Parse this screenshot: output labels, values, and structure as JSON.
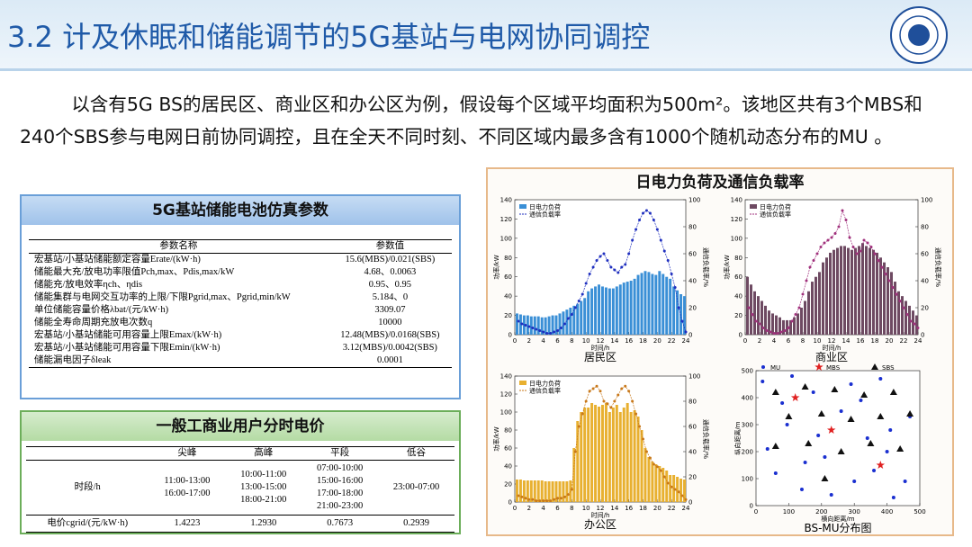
{
  "header": {
    "title": "3.2 计及休眠和储能调节的5G基站与电网协同调控"
  },
  "intro": "以含有5G BS的居民区、商业区和办公区为例，假设每个区域平均面积为500m²。该地区共有3个MBS和240个SBS参与电网日前协同调控，且在全天不同时刻、不同区域内最多含有1000个随机动态分布的MU 。",
  "battery_table": {
    "title": "5G基站储能电池仿真参数",
    "headers": [
      "参数名称",
      "参数值"
    ],
    "rows": [
      [
        "宏基站/小基站储能额定容量Erate/(kW·h)",
        "15.6(MBS)/0.021(SBS)"
      ],
      [
        "储能最大充/放电功率限值Pch,max、Pdis,max/kW",
        "4.68、0.0063"
      ],
      [
        "储能充/放电效率ηch、ηdis",
        "0.95、0.95"
      ],
      [
        "储能集群与电网交互功率的上限/下限Pgrid,max、Pgrid,min/kW",
        "5.184、0"
      ],
      [
        "单位储能容量价格λbat/(元/kW·h)",
        "3309.07"
      ],
      [
        "储能全寿命周期充放电次数q",
        "10000"
      ],
      [
        "宏基站/小基站储能可用容量上限Emax/(kW·h)",
        "12.48(MBS)/0.0168(SBS)"
      ],
      [
        "宏基站/小基站储能可用容量下限Emin/(kW·h)",
        "3.12(MBS)/0.0042(SBS)"
      ],
      [
        "储能漏电因子δleak",
        "0.0001"
      ]
    ]
  },
  "price_table": {
    "title": "一般工商业用户分时电价",
    "headers": [
      "尖峰",
      "高峰",
      "平段",
      "低谷"
    ],
    "rows": [
      [
        [
          "时段/h"
        ],
        [
          "11:00-13:00",
          "16:00-17:00"
        ],
        [
          "10:00-11:00",
          "13:00-15:00",
          "18:00-21:00"
        ],
        [
          "07:00-10:00",
          "15:00-16:00",
          "17:00-18:00",
          "21:00-23:00"
        ],
        [
          "23:00-07:00"
        ]
      ],
      [
        [
          "电价cgrid/(元/kW·h)"
        ],
        [
          "1.4223"
        ],
        [
          "1.2930"
        ],
        [
          "0.7673"
        ],
        [
          "0.2939"
        ]
      ]
    ]
  },
  "panel_title": "日电力负荷及通信负载率",
  "chart_data": [
    {
      "type": "barline",
      "caption": "居民区",
      "xlabel": "时间/h",
      "ylabel": "功率/kW",
      "y2label": "通信负载率/%",
      "xlim": [
        0,
        24
      ],
      "ylim": [
        0,
        140
      ],
      "y2lim": [
        0,
        100
      ],
      "xticks": [
        0,
        2,
        4,
        6,
        8,
        10,
        12,
        14,
        16,
        18,
        20,
        22,
        24
      ],
      "yticks": [
        0,
        20,
        40,
        60,
        80,
        100,
        120,
        140
      ],
      "y2ticks": [
        0,
        20,
        40,
        60,
        80,
        100
      ],
      "x": [
        0.5,
        1,
        1.5,
        2,
        2.5,
        3,
        3.5,
        4,
        4.5,
        5,
        5.5,
        6,
        6.5,
        7,
        7.5,
        8,
        8.5,
        9,
        9.5,
        10,
        10.5,
        11,
        11.5,
        12,
        12.5,
        13,
        13.5,
        14,
        14.5,
        15,
        15.5,
        16,
        16.5,
        17,
        17.5,
        18,
        18.5,
        19,
        19.5,
        20,
        20.5,
        21,
        21.5,
        22,
        22.5,
        23,
        23.5,
        24
      ],
      "series": [
        {
          "name": "日电力负荷",
          "color": "#3a8fd6",
          "values": [
            22,
            21,
            20,
            20,
            19,
            19,
            19,
            18,
            18,
            19,
            20,
            20,
            22,
            24,
            26,
            28,
            30,
            32,
            35,
            38,
            45,
            48,
            50,
            52,
            50,
            49,
            48,
            48,
            50,
            52,
            54,
            55,
            56,
            58,
            62,
            64,
            66,
            65,
            63,
            62,
            66,
            63,
            60,
            58,
            50,
            46,
            42,
            40
          ]
        },
        {
          "name": "通信负载率",
          "color": "#1f2fbf",
          "axis": "y2",
          "values": [
            10,
            8,
            7,
            6,
            5,
            4,
            3,
            2,
            1,
            1,
            2,
            3,
            5,
            8,
            12,
            15,
            20,
            25,
            30,
            38,
            45,
            50,
            55,
            58,
            60,
            55,
            50,
            48,
            46,
            50,
            52,
            60,
            70,
            78,
            85,
            90,
            92,
            90,
            85,
            78,
            70,
            62,
            55,
            45,
            35,
            20,
            10,
            2
          ]
        }
      ]
    },
    {
      "type": "barline",
      "caption": "商业区",
      "xlabel": "时间/h",
      "ylabel": "功率/kW",
      "y2label": "通信负载率/%",
      "xlim": [
        0,
        24
      ],
      "ylim": [
        0,
        140
      ],
      "y2lim": [
        0,
        100
      ],
      "xticks": [
        0,
        2,
        4,
        6,
        8,
        10,
        12,
        14,
        16,
        18,
        20,
        22,
        24
      ],
      "yticks": [
        0,
        20,
        40,
        60,
        80,
        100,
        120,
        140
      ],
      "y2ticks": [
        0,
        20,
        40,
        60,
        80,
        100
      ],
      "x": [
        0.5,
        1,
        1.5,
        2,
        2.5,
        3,
        3.5,
        4,
        4.5,
        5,
        5.5,
        6,
        6.5,
        7,
        7.5,
        8,
        8.5,
        9,
        9.5,
        10,
        10.5,
        11,
        11.5,
        12,
        12.5,
        13,
        13.5,
        14,
        14.5,
        15,
        15.5,
        16,
        16.5,
        17,
        17.5,
        18,
        18.5,
        19,
        19.5,
        20,
        20.5,
        21,
        21.5,
        22,
        22.5,
        23,
        23.5,
        24
      ],
      "series": [
        {
          "name": "日电力负荷",
          "color": "#6e4a62",
          "values": [
            60,
            52,
            45,
            40,
            35,
            30,
            25,
            22,
            20,
            18,
            15,
            15,
            15,
            18,
            22,
            28,
            35,
            45,
            55,
            60,
            65,
            75,
            80,
            85,
            88,
            90,
            92,
            92,
            90,
            88,
            90,
            92,
            95,
            92,
            90,
            88,
            85,
            80,
            75,
            70,
            65,
            55,
            45,
            40,
            35,
            30,
            25,
            20
          ]
        },
        {
          "name": "通信负载率",
          "color": "#a0307c",
          "axis": "y2",
          "values": [
            20,
            15,
            10,
            8,
            5,
            3,
            2,
            1,
            1,
            2,
            3,
            5,
            10,
            15,
            20,
            30,
            40,
            50,
            55,
            60,
            65,
            68,
            70,
            72,
            75,
            80,
            92,
            85,
            72,
            65,
            60,
            62,
            70,
            68,
            65,
            60,
            55,
            50,
            45,
            40,
            35,
            30,
            25,
            20,
            15,
            10,
            8,
            5
          ]
        }
      ]
    },
    {
      "type": "barline",
      "caption": "办公区",
      "xlabel": "时间/h",
      "ylabel": "功率/kW",
      "y2label": "通信负载率/%",
      "xlim": [
        0,
        24
      ],
      "ylim": [
        0,
        140
      ],
      "y2lim": [
        0,
        100
      ],
      "xticks": [
        0,
        2,
        4,
        6,
        8,
        10,
        12,
        14,
        16,
        18,
        20,
        22,
        24
      ],
      "yticks": [
        0,
        20,
        40,
        60,
        80,
        100,
        120,
        140
      ],
      "y2ticks": [
        0,
        20,
        40,
        60,
        80,
        100
      ],
      "x": [
        0.5,
        1,
        1.5,
        2,
        2.5,
        3,
        3.5,
        4,
        4.5,
        5,
        5.5,
        6,
        6.5,
        7,
        7.5,
        8,
        8.5,
        9,
        9.5,
        10,
        10.5,
        11,
        11.5,
        12,
        12.5,
        13,
        13.5,
        14,
        14.5,
        15,
        15.5,
        16,
        16.5,
        17,
        17.5,
        18,
        18.5,
        19,
        19.5,
        20,
        20.5,
        21,
        21.5,
        22,
        22.5,
        23,
        23.5,
        24
      ],
      "series": [
        {
          "name": "日电力负荷",
          "color": "#e8b030",
          "values": [
            25,
            25,
            24,
            24,
            24,
            24,
            24,
            24,
            23,
            23,
            23,
            23,
            23,
            23,
            23,
            24,
            60,
            90,
            100,
            105,
            105,
            110,
            108,
            106,
            108,
            110,
            100,
            105,
            108,
            100,
            105,
            110,
            100,
            102,
            95,
            80,
            60,
            50,
            45,
            42,
            40,
            38,
            35,
            30,
            30,
            28,
            26,
            25
          ]
        },
        {
          "name": "通信负载率",
          "color": "#c8781a",
          "axis": "y2",
          "values": [
            5,
            4,
            3,
            2,
            2,
            1,
            1,
            1,
            1,
            1,
            2,
            3,
            3,
            4,
            6,
            10,
            40,
            60,
            70,
            80,
            88,
            90,
            92,
            88,
            80,
            78,
            75,
            80,
            85,
            90,
            92,
            88,
            80,
            70,
            60,
            50,
            40,
            35,
            30,
            28,
            25,
            20,
            15,
            12,
            10,
            8,
            5,
            2
          ]
        }
      ]
    },
    {
      "type": "scatter",
      "caption": "BS-MU分布图",
      "xlabel": "横向距离/m",
      "ylabel": "纵向距离/m",
      "xlim": [
        0,
        500
      ],
      "ylim": [
        0,
        500
      ],
      "xticks": [
        0,
        100,
        200,
        300,
        400,
        500
      ],
      "yticks": [
        0,
        100,
        200,
        300,
        400,
        500
      ],
      "series": [
        {
          "name": "MU",
          "color": "#1a2fd0",
          "marker": "circle",
          "x": [
            20,
            60,
            95,
            140,
            175,
            210,
            260,
            300,
            340,
            380,
            420,
            470,
            35,
            80,
            150,
            230,
            290,
            360,
            410,
            455,
            110,
            320,
            190,
            400
          ],
          "y": [
            460,
            120,
            300,
            60,
            420,
            180,
            350,
            90,
            250,
            470,
            30,
            330,
            210,
            380,
            160,
            40,
            450,
            130,
            280,
            90,
            480,
            390,
            260,
            200
          ]
        },
        {
          "name": "MBS",
          "color": "#e02020",
          "marker": "star",
          "x": [
            230,
            120,
            380
          ],
          "y": [
            280,
            400,
            150
          ]
        },
        {
          "name": "SBS",
          "color": "#111111",
          "marker": "triangle",
          "x": [
            60,
            150,
            240,
            330,
            420,
            100,
            200,
            290,
            380,
            470,
            60,
            160,
            260,
            350,
            440,
            210
          ],
          "y": [
            420,
            440,
            430,
            410,
            420,
            330,
            340,
            320,
            330,
            340,
            220,
            230,
            200,
            230,
            210,
            100
          ]
        }
      ]
    }
  ]
}
